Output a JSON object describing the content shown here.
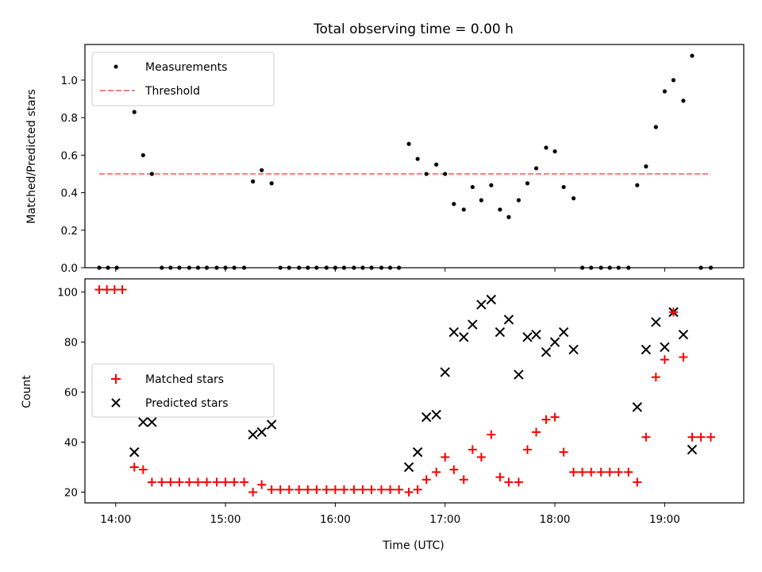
{
  "chart_data": [
    {
      "type": "scatter",
      "title": "Total observing time = 0.00 h",
      "ylabel": "Matched/Predicted stars",
      "ylim": [
        0,
        1.19
      ],
      "yticks": [
        "0.0",
        "0.2",
        "0.4",
        "0.6",
        "0.8",
        "1.0"
      ],
      "xlim": [
        13.72,
        19.72
      ],
      "legend_position": "upper-left",
      "series": [
        {
          "name": "Measurements",
          "marker": "dot",
          "color": "#000000",
          "x": [
            13.85,
            13.93,
            14.01,
            14.17,
            14.25,
            14.33,
            14.42,
            14.5,
            14.58,
            14.67,
            14.75,
            14.83,
            14.92,
            15.0,
            15.08,
            15.17,
            15.25,
            15.33,
            15.42,
            15.5,
            15.58,
            15.67,
            15.75,
            15.83,
            15.92,
            16.0,
            16.08,
            16.17,
            16.25,
            16.33,
            16.42,
            16.5,
            16.58,
            16.67,
            16.75,
            16.83,
            16.92,
            17.0,
            17.08,
            17.17,
            17.25,
            17.33,
            17.42,
            17.5,
            17.58,
            17.67,
            17.75,
            17.83,
            17.92,
            18.0,
            18.08,
            18.17,
            18.25,
            18.33,
            18.42,
            18.5,
            18.58,
            18.67,
            18.75,
            18.83,
            18.92,
            19.0,
            19.08,
            19.17,
            19.25,
            19.33,
            19.42
          ],
          "y": [
            0,
            0,
            0,
            0.83,
            0.6,
            0.5,
            0,
            0,
            0,
            0,
            0,
            0,
            0,
            0,
            0,
            0,
            0.46,
            0.52,
            0.45,
            0,
            0,
            0,
            0,
            0,
            0,
            0,
            0,
            0,
            0,
            0,
            0,
            0,
            0,
            0.66,
            0.58,
            0.5,
            0.55,
            0.5,
            0.34,
            0.31,
            0.43,
            0.36,
            0.44,
            0.31,
            0.27,
            0.36,
            0.45,
            0.53,
            0.64,
            0.62,
            0.43,
            0.37,
            0,
            0,
            0,
            0,
            0,
            0,
            0.44,
            0.54,
            0.75,
            0.94,
            1.0,
            0.89,
            1.13,
            0,
            0
          ]
        },
        {
          "name": "Threshold",
          "style": "dashed",
          "color": "#f08080",
          "x": [
            13.85,
            19.42
          ],
          "y": [
            0.5,
            0.5
          ]
        }
      ]
    },
    {
      "type": "scatter",
      "xlabel": "Time (UTC)",
      "ylabel": "Count",
      "ylim": [
        15.7,
        105.3
      ],
      "yticks": [
        "20",
        "40",
        "60",
        "80",
        "100"
      ],
      "xlim": [
        13.72,
        19.72
      ],
      "xticks": [
        "14:00",
        "15:00",
        "16:00",
        "17:00",
        "18:00",
        "19:00"
      ],
      "xtick_values": [
        14,
        15,
        16,
        17,
        18,
        19
      ],
      "legend_position": "center-left",
      "series": [
        {
          "name": "Matched stars",
          "marker": "plus",
          "color": "#ff0000",
          "x": [
            13.85,
            13.92,
            13.99,
            14.06,
            14.17,
            14.25,
            14.33,
            14.42,
            14.5,
            14.58,
            14.67,
            14.75,
            14.83,
            14.92,
            15.0,
            15.08,
            15.17,
            15.25,
            15.33,
            15.42,
            15.5,
            15.58,
            15.67,
            15.75,
            15.83,
            15.92,
            16.0,
            16.08,
            16.17,
            16.25,
            16.33,
            16.42,
            16.5,
            16.58,
            16.67,
            16.75,
            16.83,
            16.92,
            17.0,
            17.08,
            17.17,
            17.25,
            17.33,
            17.42,
            17.5,
            17.58,
            17.67,
            17.75,
            17.83,
            17.92,
            18.0,
            18.08,
            18.17,
            18.25,
            18.33,
            18.42,
            18.5,
            18.58,
            18.67,
            18.75,
            18.83,
            18.92,
            19.0,
            19.08,
            19.17,
            19.25,
            19.33,
            19.42
          ],
          "y": [
            101,
            101,
            101,
            101,
            30,
            29,
            24,
            24,
            24,
            24,
            24,
            24,
            24,
            24,
            24,
            24,
            24,
            20,
            23,
            21,
            21,
            21,
            21,
            21,
            21,
            21,
            21,
            21,
            21,
            21,
            21,
            21,
            21,
            21,
            20,
            21,
            25,
            28,
            34,
            29,
            25,
            37,
            34,
            43,
            26,
            24,
            24,
            37,
            44,
            49,
            50,
            36,
            28,
            28,
            28,
            28,
            28,
            28,
            28,
            24,
            42,
            66,
            73,
            92,
            74,
            42,
            42,
            42
          ]
        },
        {
          "name": "Predicted stars",
          "marker": "x",
          "color": "#000000",
          "x": [
            14.17,
            14.25,
            14.33,
            15.25,
            15.33,
            15.42,
            16.67,
            16.75,
            16.83,
            16.92,
            17.0,
            17.08,
            17.17,
            17.25,
            17.33,
            17.42,
            17.5,
            17.58,
            17.67,
            17.75,
            17.83,
            17.92,
            18.0,
            18.08,
            18.17,
            18.75,
            18.83,
            18.92,
            19.0,
            19.08,
            19.17,
            19.25
          ],
          "y": [
            36,
            48,
            48,
            43,
            44,
            47,
            30,
            36,
            50,
            51,
            68,
            84,
            82,
            87,
            95,
            97,
            84,
            89,
            67,
            82,
            83,
            76,
            80,
            84,
            77,
            54,
            77,
            88,
            78,
            92,
            83,
            37
          ]
        }
      ]
    }
  ]
}
